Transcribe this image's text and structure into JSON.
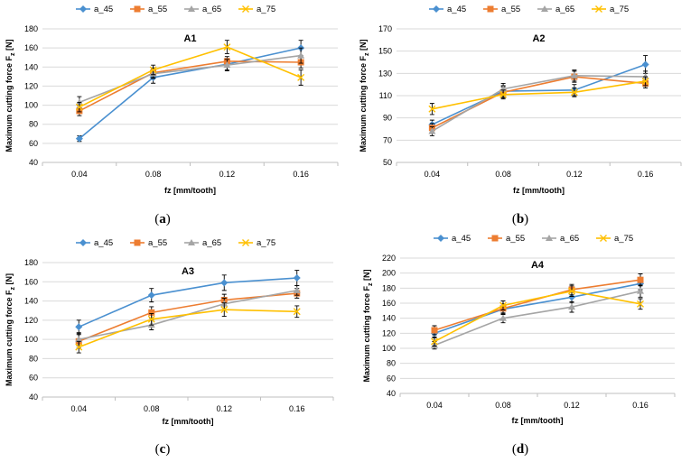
{
  "figure_captions": [
    "(a)",
    "(b)",
    "(c)",
    "(d)"
  ],
  "legend_symbols": {
    "a_45": "diamond",
    "a_55": "square",
    "a_65": "triangle",
    "a_75": "x"
  },
  "chart_data": [
    {
      "type": "line",
      "title": "A1",
      "caption": {
        "open": "(",
        "letter": "a",
        "close": ")"
      },
      "xlabel": "fz [mm/tooth]",
      "ylabel": "Maximum cutting force F",
      "ylabel_subscript": "z",
      "ylabel_suffix": " [N]",
      "categories": [
        "0.04",
        "0.08",
        "0.12",
        "0.16"
      ],
      "ylim": [
        40,
        180
      ],
      "yticks": [
        40,
        60,
        80,
        100,
        120,
        140,
        160,
        180
      ],
      "grid": true,
      "legend_position": "top",
      "series": [
        {
          "name": "a_45",
          "color": "#4a90d0",
          "values": [
            65,
            129,
            143,
            160
          ],
          "errors": [
            3,
            6,
            6,
            8
          ]
        },
        {
          "name": "a_55",
          "color": "#ed7d31",
          "values": [
            94,
            134,
            146,
            145
          ],
          "errors": [
            5,
            5,
            5,
            6
          ]
        },
        {
          "name": "a_65",
          "color": "#a5a5a5",
          "values": [
            103,
            133,
            142,
            152
          ],
          "errors": [
            6,
            5,
            6,
            8
          ]
        },
        {
          "name": "a_75",
          "color": "#ffc000",
          "values": [
            98,
            137,
            161,
            129
          ],
          "errors": [
            5,
            5,
            7,
            8
          ]
        }
      ]
    },
    {
      "type": "line",
      "title": "A2",
      "caption": {
        "open": "(",
        "letter": "b",
        "close": ")"
      },
      "xlabel": "fz [mm/tooth]",
      "ylabel": "Maximum cutting force F",
      "ylabel_subscript": "z",
      "ylabel_suffix": " [N]",
      "categories": [
        "0.04",
        "0.08",
        "0.12",
        "0.16"
      ],
      "ylim": [
        50,
        170
      ],
      "yticks": [
        50,
        70,
        90,
        110,
        130,
        150,
        170
      ],
      "grid": true,
      "legend_position": "top",
      "series": [
        {
          "name": "a_45",
          "color": "#4a90d0",
          "values": [
            84,
            114,
            115,
            138
          ],
          "errors": [
            4,
            5,
            5,
            8
          ]
        },
        {
          "name": "a_55",
          "color": "#ed7d31",
          "values": [
            81,
            113,
            127,
            121
          ],
          "errors": [
            4,
            5,
            5,
            4
          ]
        },
        {
          "name": "a_65",
          "color": "#a5a5a5",
          "values": [
            78,
            116,
            128,
            127
          ],
          "errors": [
            4,
            5,
            5,
            5
          ]
        },
        {
          "name": "a_75",
          "color": "#ffc000",
          "values": [
            98,
            111,
            113,
            123
          ],
          "errors": [
            5,
            4,
            4,
            4
          ]
        }
      ]
    },
    {
      "type": "line",
      "title": "A3",
      "caption": {
        "open": "(",
        "letter": "c",
        "close": ")"
      },
      "xlabel": "fz [mm/tooth]",
      "ylabel": "Maximum cutting force F",
      "ylabel_subscript": "z",
      "ylabel_suffix": " [N]",
      "categories": [
        "0.04",
        "0.08",
        "0.12",
        "0.16"
      ],
      "ylim": [
        40,
        180
      ],
      "yticks": [
        40,
        60,
        80,
        100,
        120,
        140,
        160,
        180
      ],
      "grid": true,
      "legend_position": "top",
      "series": [
        {
          "name": "a_45",
          "color": "#4a90d0",
          "values": [
            113,
            146,
            159,
            164
          ],
          "errors": [
            7,
            7,
            8,
            8
          ]
        },
        {
          "name": "a_55",
          "color": "#ed7d31",
          "values": [
            98,
            128,
            141,
            148
          ],
          "errors": [
            7,
            6,
            6,
            5
          ]
        },
        {
          "name": "a_65",
          "color": "#a5a5a5",
          "values": [
            100,
            115,
            137,
            151
          ],
          "errors": [
            7,
            5,
            6,
            5
          ]
        },
        {
          "name": "a_75",
          "color": "#ffc000",
          "values": [
            92,
            121,
            131,
            129
          ],
          "errors": [
            6,
            6,
            7,
            6
          ]
        }
      ]
    },
    {
      "type": "line",
      "title": "A4",
      "caption": {
        "open": "(",
        "letter": "d",
        "close": ")"
      },
      "xlabel": "fz [mm/tooth]",
      "ylabel": "Maximum cutting force F",
      "ylabel_subscript": "z",
      "ylabel_suffix": " [N]",
      "categories": [
        "0.04",
        "0.08",
        "0.12",
        "0.16"
      ],
      "ylim": [
        40,
        220
      ],
      "yticks": [
        40,
        60,
        80,
        100,
        120,
        140,
        160,
        180,
        200,
        220
      ],
      "grid": true,
      "legend_position": "top",
      "series": [
        {
          "name": "a_45",
          "color": "#4a90d0",
          "values": [
            120,
            152,
            168,
            186
          ],
          "errors": [
            6,
            7,
            7,
            8
          ]
        },
        {
          "name": "a_55",
          "color": "#ed7d31",
          "values": [
            124,
            153,
            178,
            191
          ],
          "errors": [
            6,
            6,
            7,
            8
          ]
        },
        {
          "name": "a_65",
          "color": "#a5a5a5",
          "values": [
            104,
            140,
            155,
            176
          ],
          "errors": [
            5,
            6,
            7,
            8
          ]
        },
        {
          "name": "a_75",
          "color": "#ffc000",
          "values": [
            109,
            157,
            176,
            159
          ],
          "errors": [
            6,
            6,
            7,
            7
          ]
        }
      ]
    }
  ]
}
